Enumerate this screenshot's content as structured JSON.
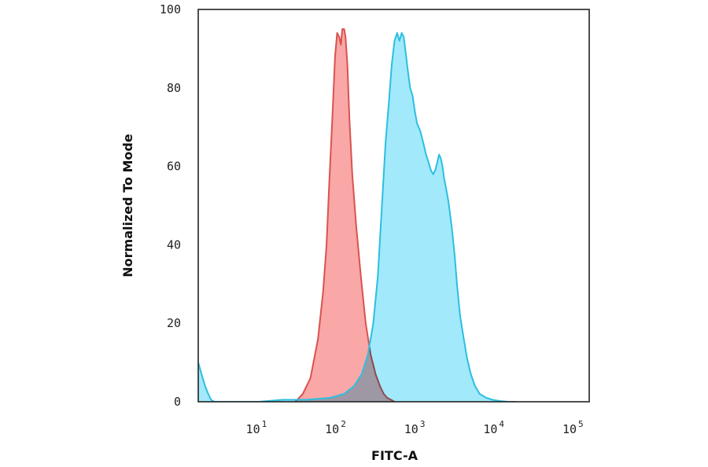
{
  "chart_data": {
    "type": "area",
    "xlabel": "FITC-A",
    "ylabel": "Normalized To Mode",
    "x_scale": "log",
    "xlim": [
      1.72,
      150000
    ],
    "ylim": [
      0,
      100
    ],
    "grid": false,
    "legend": "none",
    "x_ticks": [
      {
        "base": "10",
        "exp": "1",
        "value": 10
      },
      {
        "base": "10",
        "exp": "2",
        "value": 100
      },
      {
        "base": "10",
        "exp": "3",
        "value": 1000
      },
      {
        "base": "10",
        "exp": "4",
        "value": 10000
      },
      {
        "base": "10",
        "exp": "5",
        "value": 100000
      }
    ],
    "y_ticks": [
      {
        "label": "0",
        "value": 0
      },
      {
        "label": "20",
        "value": 20
      },
      {
        "label": "40",
        "value": 40
      },
      {
        "label": "60",
        "value": 60
      },
      {
        "label": "80",
        "value": 80
      },
      {
        "label": "100",
        "value": 100
      }
    ],
    "series": [
      {
        "fill": "#f9a7a7",
        "stroke": "#d9534f",
        "x": [
          29,
          36,
          45,
          56,
          65,
          72,
          78,
          85,
          92,
          98,
          104,
          109,
          114,
          120,
          125,
          132,
          140,
          152,
          170,
          195,
          225,
          260,
          300,
          340,
          380,
          420,
          470,
          520
        ],
        "y": [
          0,
          2,
          6,
          16,
          28,
          40,
          56,
          72,
          88,
          94,
          93,
          91,
          95,
          95,
          93,
          86,
          72,
          58,
          45,
          32,
          20,
          12,
          7,
          4,
          2,
          1,
          0.5,
          0
        ]
      },
      {
        "fill": "#9ce8fb",
        "stroke": "#2cbfe0",
        "x": [
          1.72,
          1.9,
          2.1,
          2.3,
          2.5,
          2.75,
          10,
          20,
          40,
          80,
          120,
          160,
          200,
          240,
          280,
          320,
          360,
          400,
          440,
          480,
          520,
          560,
          600,
          640,
          680,
          720,
          770,
          820,
          880,
          940,
          1000,
          1100,
          1200,
          1300,
          1400,
          1500,
          1600,
          1700,
          1800,
          1900,
          2000,
          2100,
          2200,
          2350,
          2500,
          2650,
          2800,
          3000,
          3200,
          3500,
          3900,
          4300,
          4800,
          5400,
          6200,
          7500,
          9000,
          11000,
          14000,
          18000
        ],
        "y": [
          10,
          7,
          4,
          2,
          0.5,
          0,
          0,
          0.5,
          0.5,
          1,
          2,
          4,
          7,
          12,
          20,
          32,
          50,
          66,
          76,
          86,
          92,
          94,
          92,
          94,
          93,
          89,
          84,
          80,
          78,
          74,
          71,
          69,
          66,
          63,
          61,
          59,
          58,
          59,
          61,
          63,
          62,
          60,
          57,
          54,
          51,
          47,
          43,
          37,
          30,
          22,
          16,
          11,
          7,
          4,
          2,
          1,
          0.5,
          0.2,
          0,
          0
        ]
      }
    ]
  }
}
